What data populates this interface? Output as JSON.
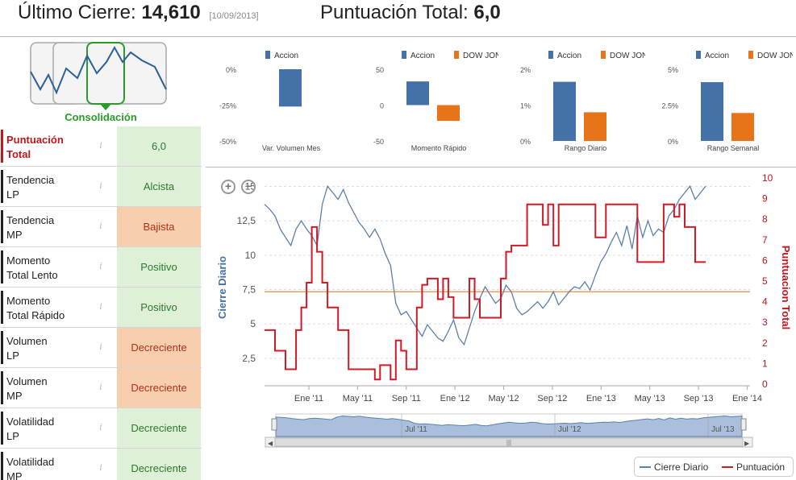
{
  "header": {
    "last_close_label": "Último Cierre:",
    "last_close_value": "14,610",
    "last_close_date": "[10/09/2013]",
    "score_label": "Puntuación Total:",
    "score_value": "6,0"
  },
  "pattern": {
    "label": "Consolidación"
  },
  "mini_charts": [
    {
      "legend": [
        "Accion"
      ],
      "yticks": [
        "0%",
        "-25%",
        "-50%"
      ],
      "xlabel": "Var. Volumen Mes",
      "ylim": [
        -50,
        0
      ],
      "values": [
        -26
      ],
      "colors": [
        "#4472a8"
      ]
    },
    {
      "legend": [
        "Accion",
        "DOW JONES"
      ],
      "yticks": [
        "50",
        "0",
        "-50"
      ],
      "xlabel": "Momento Rápido",
      "ylim": [
        -50,
        50
      ],
      "values": [
        33,
        -22
      ],
      "colors": [
        "#4472a8",
        "#e8741a"
      ]
    },
    {
      "legend": [
        "Accion",
        "DOW JONES"
      ],
      "yticks": [
        "2%",
        "1%",
        "0%"
      ],
      "xlabel": "Rango Diario",
      "ylim": [
        0,
        2
      ],
      "values": [
        1.65,
        0.8
      ],
      "colors": [
        "#4472a8",
        "#e8741a"
      ]
    },
    {
      "legend": [
        "Accion",
        "DOW JONES"
      ],
      "yticks": [
        "5%",
        "2.5%",
        "0%"
      ],
      "xlabel": "Rango Semanal",
      "ylim": [
        0,
        5
      ],
      "values": [
        4.1,
        1.95
      ],
      "colors": [
        "#4472a8",
        "#e8741a"
      ]
    }
  ],
  "rows": [
    {
      "line1": "Puntuación",
      "line2": "Total",
      "value": "6,0",
      "status": "good",
      "first": true
    },
    {
      "line1": "Tendencia",
      "line2": "LP",
      "value": "Alcista",
      "status": "good"
    },
    {
      "line1": "Tendencia",
      "line2": "MP",
      "value": "Bajista",
      "status": "bad"
    },
    {
      "line1": "Momento",
      "line2": "Total Lento",
      "value": "Positivo",
      "status": "good"
    },
    {
      "line1": "Momento",
      "line2": "Total Rápido",
      "value": "Positivo",
      "status": "good"
    },
    {
      "line1": "Volumen",
      "line2": "LP",
      "value": "Decreciente",
      "status": "bad"
    },
    {
      "line1": "Volumen",
      "line2": "MP",
      "value": "Decreciente",
      "status": "bad"
    },
    {
      "line1": "Volatilidad",
      "line2": "LP",
      "value": "Decreciente",
      "status": "good"
    },
    {
      "line1": "Volatilidad",
      "line2": "MP",
      "value": "Decreciente",
      "status": "good"
    }
  ],
  "chart_data": {
    "type": "line",
    "ylabel_left": "Cierre Diario",
    "ylabel_right": "Puntuacion Total",
    "left_ticks": [
      "15",
      "12,5",
      "10",
      "7,5",
      "5",
      "2,5"
    ],
    "left_ylim": [
      2.5,
      15
    ],
    "right_ticks": [
      "10",
      "9",
      "8",
      "7",
      "6",
      "5",
      "4",
      "3",
      "2",
      "1",
      "0"
    ],
    "right_ylim": [
      0,
      10
    ],
    "x_ticks": [
      "Ene '11",
      "May '11",
      "Sep '11",
      "Ene '12",
      "May '12",
      "Sep '12",
      "Ene '13",
      "May '13",
      "Sep '13",
      "Ene '14"
    ],
    "navigator_labels": [
      "Jul '11",
      "Jul '12",
      "Jul '13"
    ],
    "reference_line": 8.2,
    "series": [
      {
        "name": "Cierre Diario",
        "color": "#5b80ad",
        "values": [
          13.5,
          13.2,
          12.8,
          12.0,
          11.5,
          11.0,
          12.0,
          12.5,
          12.0,
          11.6,
          11.0,
          13.5,
          14.6,
          14.2,
          13.8,
          14.4,
          13.6,
          13.0,
          12.4,
          12.0,
          11.5,
          12.0,
          11.4,
          10.5,
          9.8,
          7.5,
          6.8,
          7.0,
          6.5,
          6.0,
          5.5,
          6.2,
          5.8,
          5.4,
          5.2,
          5.8,
          6.5,
          5.4,
          5.0,
          6.0,
          7.0,
          7.8,
          8.5,
          8.0,
          7.5,
          7.8,
          8.6,
          8.2,
          7.2,
          6.8,
          7.0,
          7.3,
          7.6,
          7.2,
          7.6,
          8.2,
          7.4,
          7.8,
          8.2,
          8.5,
          8.4,
          8.8,
          8.3,
          9.2,
          10.0,
          10.5,
          11.2,
          11.8,
          11.0,
          12.2,
          10.8,
          12.8,
          11.5,
          12.5,
          11.6,
          12.0,
          11.8,
          12.8,
          13.2,
          13.8,
          14.2,
          14.6,
          13.8,
          14.2,
          14.6
        ]
      },
      {
        "name": "Puntuación",
        "color": "#d11a25",
        "values": [
          2.7,
          2.7,
          1.7,
          1.7,
          0.8,
          0.8,
          2.7,
          3.8,
          5.0,
          7.7,
          6.5,
          5.0,
          3.8,
          3.8,
          2.7,
          2.7,
          0.8,
          0.8,
          0.8,
          0.8,
          0.8,
          0.3,
          1.0,
          1.0,
          0.3,
          2.2,
          1.7,
          0.8,
          0.8,
          3.8,
          4.9,
          5.2,
          5.2,
          4.2,
          5.2,
          4.3,
          3.3,
          3.3,
          3.3,
          5.2,
          4.2,
          3.3,
          3.3,
          3.3,
          3.3,
          5.2,
          6.5,
          6.8,
          6.8,
          6.8,
          8.8,
          8.8,
          8.8,
          7.8,
          8.8,
          6.8,
          8.8,
          8.8,
          8.8,
          8.8,
          8.8,
          8.8,
          8.8,
          7.2,
          7.2,
          8.8,
          8.8,
          8.8,
          8.8,
          8.8,
          8.8,
          6.0,
          6.0,
          6.0,
          6.0,
          6.0,
          8.8,
          8.8,
          8.2,
          8.8,
          7.7,
          7.7,
          6.0,
          6.0,
          6.0
        ]
      }
    ],
    "legend": [
      "Cierre Diario",
      "Puntuación"
    ]
  }
}
